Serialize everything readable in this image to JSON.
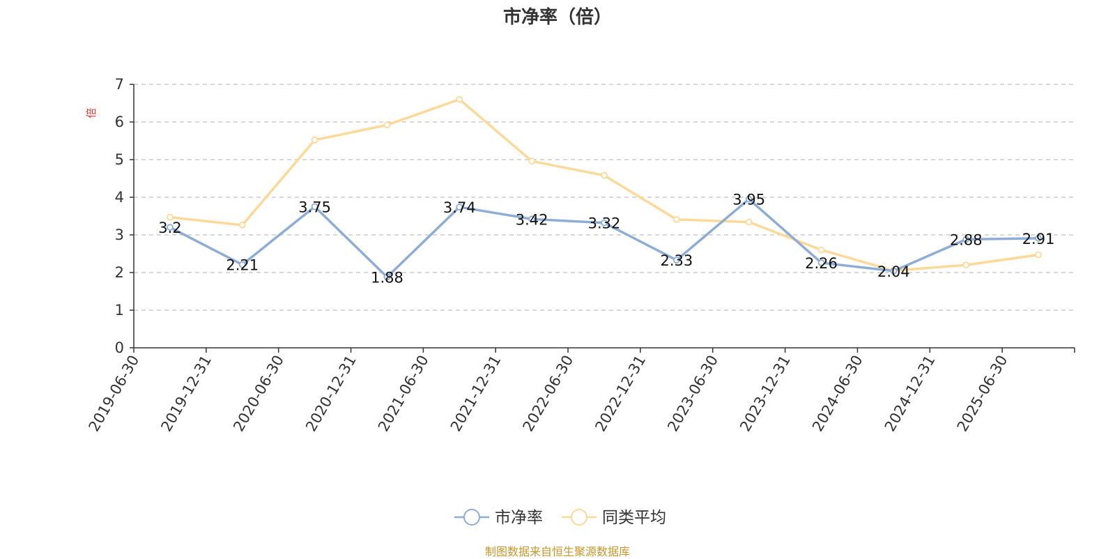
{
  "chart_data": {
    "type": "line",
    "title": "市净率（倍）",
    "ylabel": "倍",
    "ylim": [
      0,
      7
    ],
    "yticks": [
      0,
      1,
      2,
      3,
      4,
      5,
      6,
      7
    ],
    "grid": true,
    "legend_position": "bottom-center",
    "categories": [
      "2019-06-30",
      "2019-12-31",
      "2020-06-30",
      "2020-12-31",
      "2021-06-30",
      "2021-12-31",
      "2022-06-30",
      "2022-12-31",
      "2023-06-30",
      "2023-12-31",
      "2024-06-30",
      "2024-12-31",
      "2025-06-30"
    ],
    "series": [
      {
        "name": "市净率",
        "color": "#8eadd6",
        "show_labels": true,
        "values": [
          3.2,
          2.21,
          3.75,
          1.88,
          3.74,
          3.42,
          3.32,
          2.33,
          3.95,
          2.26,
          2.04,
          2.88,
          2.91
        ]
      },
      {
        "name": "同类平均",
        "color": "#fcd998",
        "show_labels": false,
        "values": [
          3.47,
          3.26,
          5.52,
          5.92,
          6.6,
          4.96,
          4.58,
          3.41,
          3.34,
          2.6,
          2.05,
          2.2,
          2.47
        ]
      }
    ]
  },
  "source_note": "制图数据来自恒生聚源数据库"
}
